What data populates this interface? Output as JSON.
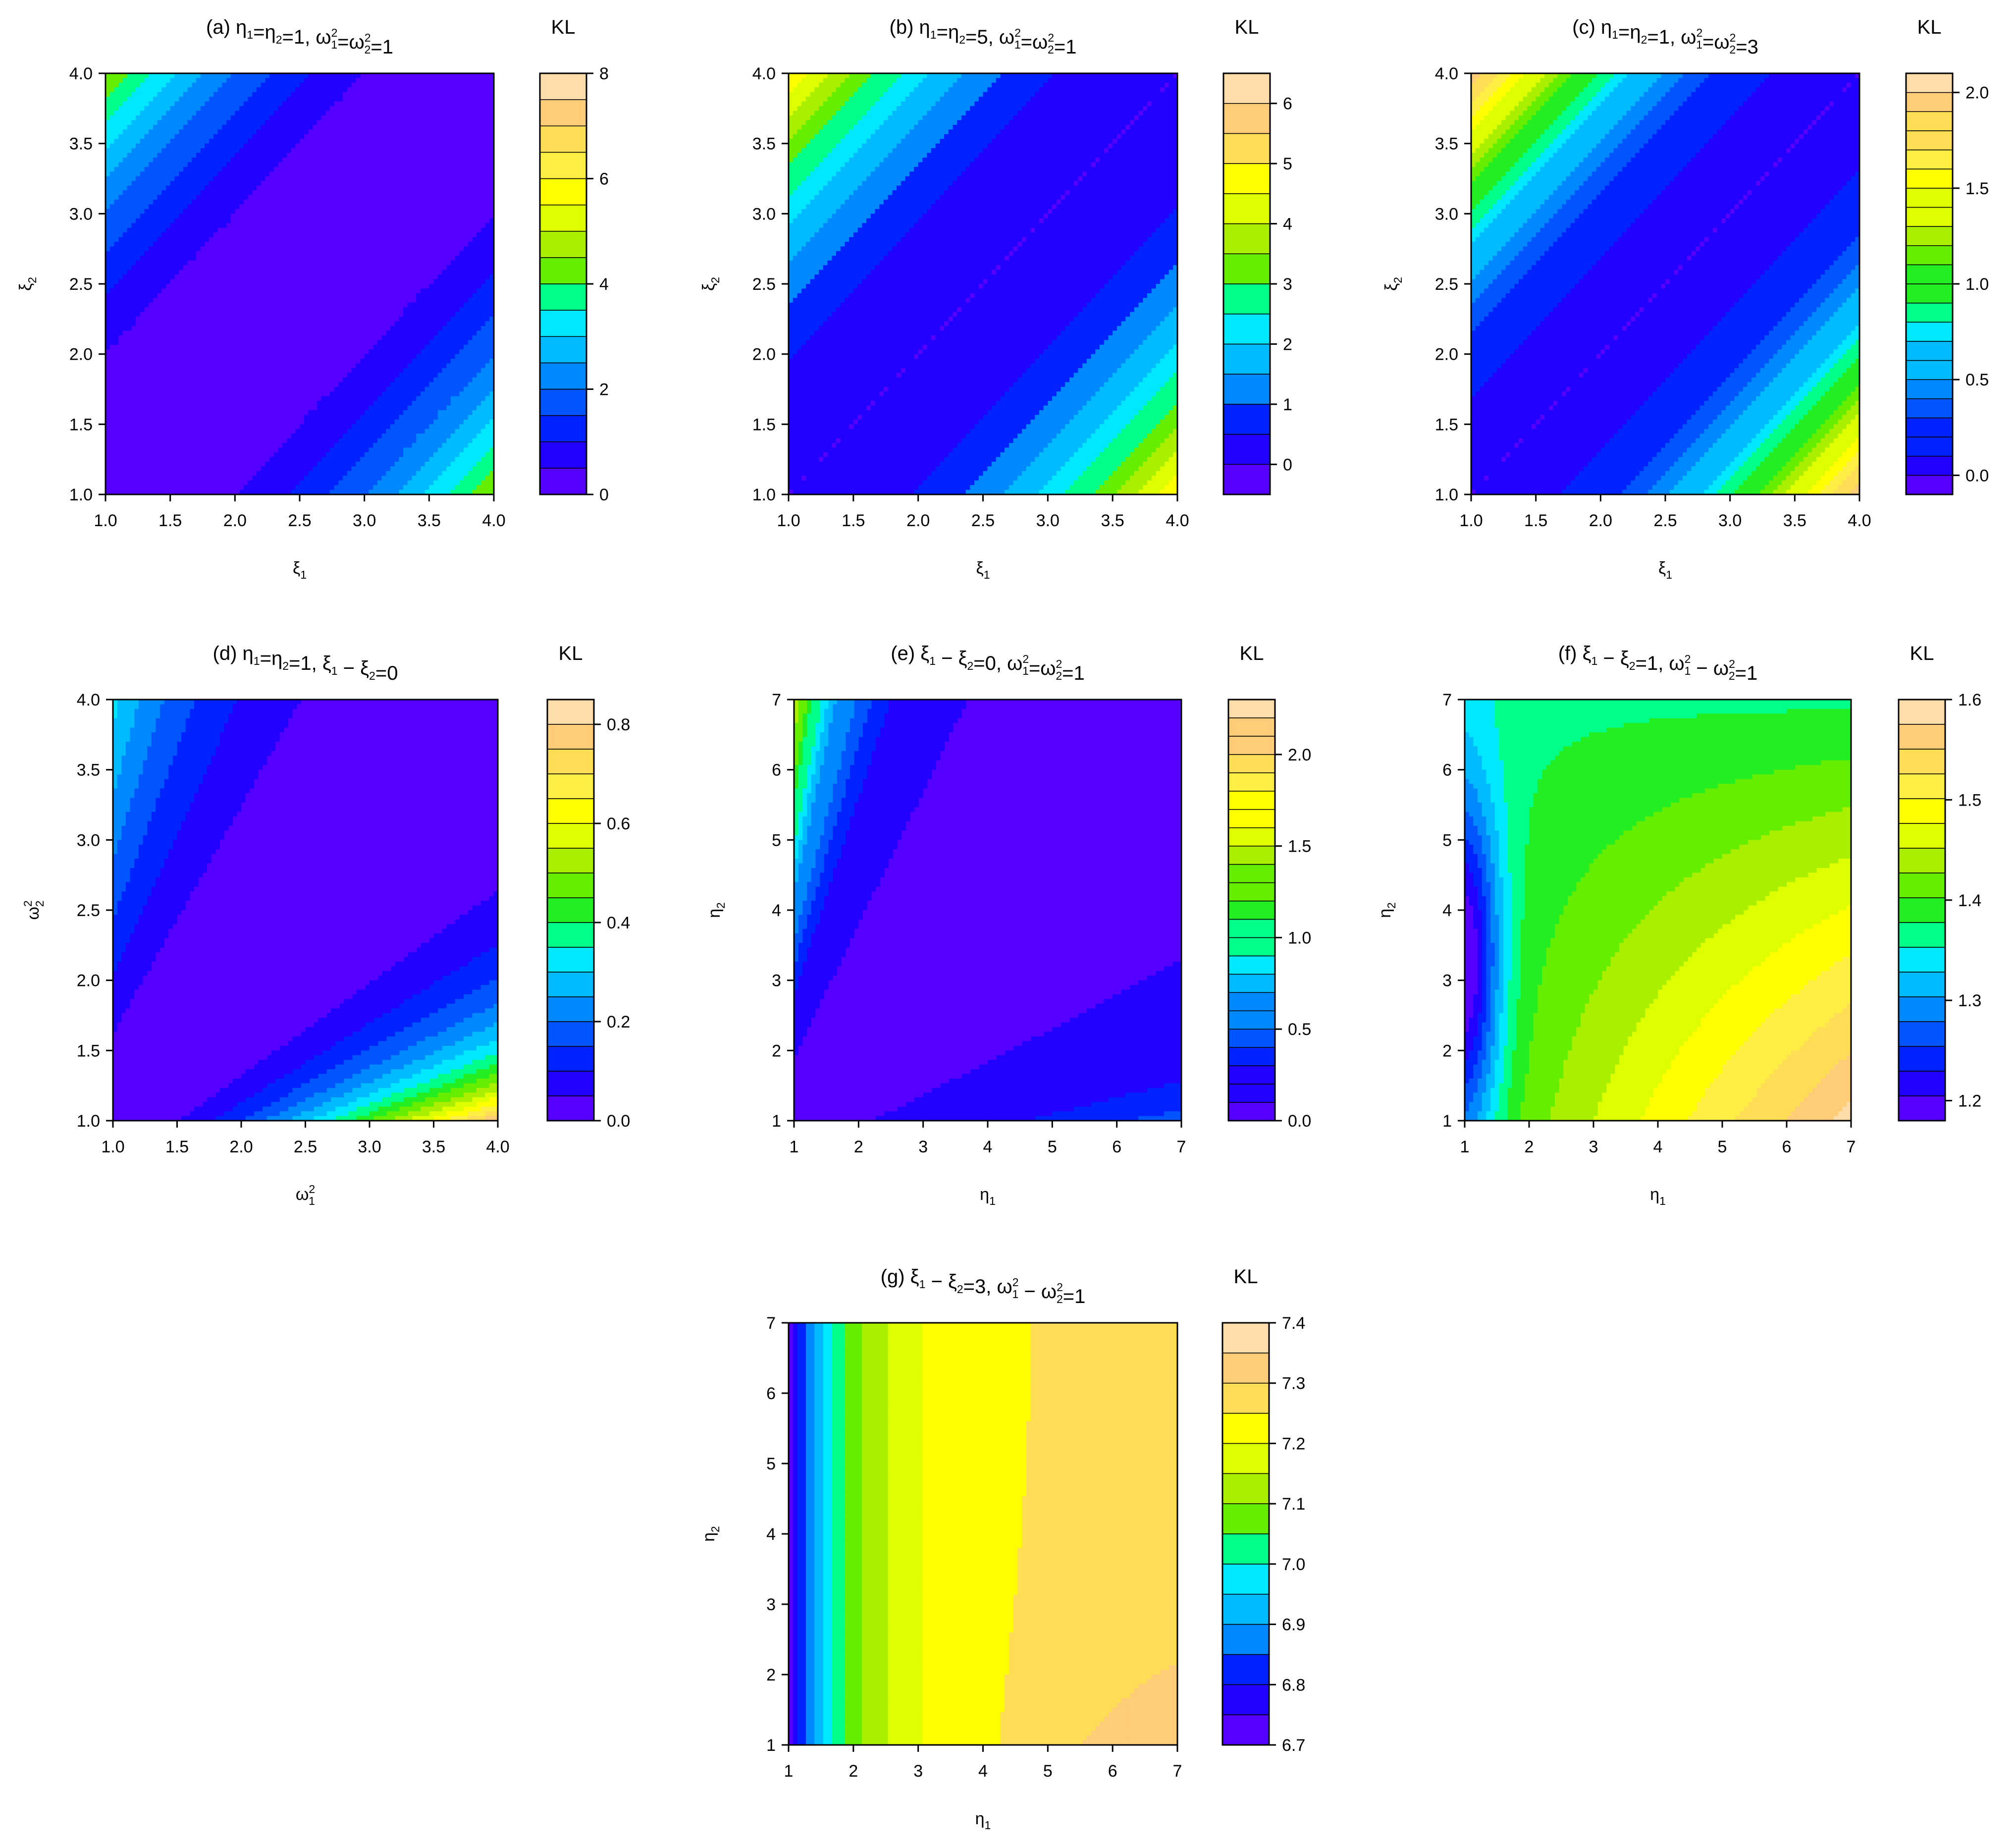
{
  "palette": [
    "#5500ff",
    "#2200ff",
    "#0022ff",
    "#0055ff",
    "#0088ff",
    "#00bbff",
    "#00e8ff",
    "#00ff88",
    "#22ee22",
    "#66ee00",
    "#aaee00",
    "#ddff00",
    "#ffff00",
    "#ffee44",
    "#ffdd55",
    "#ffcc77",
    "#ffddaa"
  ],
  "chart_data": [
    {
      "id": "a",
      "type": "heatmap",
      "title": {
        "label": "(a)",
        "parts": [
          [
            "η",
            "1",
            ""
          ],
          [
            "=η",
            "2",
            ""
          ],
          [
            "=1, ω",
            "1",
            "2"
          ],
          [
            "=ω",
            "2",
            "2"
          ],
          [
            "=1",
            "",
            ""
          ]
        ]
      },
      "legend_title": "KL",
      "xlabel": {
        "sym": "ξ",
        "sub": "1",
        "sup": ""
      },
      "ylabel": {
        "sym": "ξ",
        "sub": "2",
        "sup": ""
      },
      "xlim": [
        1,
        4
      ],
      "ylim": [
        1,
        4
      ],
      "xticks": [
        "1.0",
        "1.5",
        "2.0",
        "2.5",
        "3.0",
        "3.5",
        "4.0"
      ],
      "yticks": [
        "1.0",
        "1.5",
        "2.0",
        "2.5",
        "3.0",
        "3.5",
        "4.0"
      ],
      "levels": [
        0,
        0.5,
        1,
        1.5,
        2,
        2.5,
        3,
        3.5,
        4,
        4.5,
        5,
        5.5,
        6,
        6.5,
        7,
        7.5,
        8
      ],
      "colorbar_ticks": [
        "0",
        "2",
        "4",
        "6",
        "8"
      ],
      "function": "diagonal-quadratic",
      "grid_values_approx": "KL ≈ 0.5·(ξ1−ξ2)², 0 on the diagonal, ≈ 4.5 at corners (1,4) and (4,1)"
    },
    {
      "id": "b",
      "type": "heatmap",
      "title": {
        "label": "(b)",
        "parts": [
          [
            "η",
            "1",
            ""
          ],
          [
            "=η",
            "2",
            ""
          ],
          [
            "=5, ω",
            "1",
            "2"
          ],
          [
            "=ω",
            "2",
            "2"
          ],
          [
            "=1",
            "",
            ""
          ]
        ]
      },
      "legend_title": "KL",
      "xlabel": {
        "sym": "ξ",
        "sub": "1",
        "sup": ""
      },
      "ylabel": {
        "sym": "ξ",
        "sub": "2",
        "sup": ""
      },
      "xlim": [
        1,
        4
      ],
      "ylim": [
        1,
        4
      ],
      "xticks": [
        "1.0",
        "1.5",
        "2.0",
        "2.5",
        "3.0",
        "3.5",
        "4.0"
      ],
      "yticks": [
        "1.0",
        "1.5",
        "2.0",
        "2.5",
        "3.0",
        "3.5",
        "4.0"
      ],
      "levels": [
        -0.5,
        0,
        0.5,
        1,
        1.5,
        2,
        2.5,
        3,
        3.5,
        4,
        4.5,
        5,
        5.5,
        6,
        6.5
      ],
      "colorbar_ticks": [
        "0",
        "1",
        "2",
        "3",
        "4",
        "5",
        "6"
      ],
      "function": "diagonal-quadratic",
      "grid_values_approx": "KL ≈ 0.55·(ξ1−ξ2)², minimum near the diagonal, ≈ 5 at corner (4,1)"
    },
    {
      "id": "c",
      "type": "heatmap",
      "title": {
        "label": "(c)",
        "parts": [
          [
            "η",
            "1",
            ""
          ],
          [
            "=η",
            "2",
            ""
          ],
          [
            "=1, ω",
            "1",
            "2"
          ],
          [
            "=ω",
            "2",
            "2"
          ],
          [
            "=3",
            "",
            ""
          ]
        ]
      },
      "legend_title": "KL",
      "xlabel": {
        "sym": "ξ",
        "sub": "1",
        "sup": ""
      },
      "ylabel": {
        "sym": "ξ",
        "sub": "2",
        "sup": ""
      },
      "xlim": [
        1,
        4
      ],
      "ylim": [
        1,
        4
      ],
      "xticks": [
        "1.0",
        "1.5",
        "2.0",
        "2.5",
        "3.0",
        "3.5",
        "4.0"
      ],
      "yticks": [
        "1.0",
        "1.5",
        "2.0",
        "2.5",
        "3.0",
        "3.5",
        "4.0"
      ],
      "levels": [
        -0.1,
        -0.0,
        0.1,
        0.2,
        0.3,
        0.4,
        0.5,
        0.6,
        0.7,
        0.8,
        0.9,
        1.0,
        1.1,
        1.2,
        1.3,
        1.4,
        1.5,
        1.6,
        1.7,
        1.8,
        1.9,
        2.0,
        2.1
      ],
      "colorbar_ticks": [
        "0.0",
        "0.5",
        "1.0",
        "1.5",
        "2.0"
      ],
      "function": "diagonal-quadratic",
      "grid_values_approx": "KL ≈ 0.222·(ξ1−ξ2)², 0 on the diagonal, ≈ 2.0 at corners"
    },
    {
      "id": "d",
      "type": "heatmap",
      "title": {
        "label": "(d)",
        "parts": [
          [
            "η",
            "1",
            ""
          ],
          [
            "=η",
            "2",
            ""
          ],
          [
            "=1, ξ",
            "1",
            ""
          ],
          [
            " − ξ",
            "2",
            ""
          ],
          [
            "=0",
            "",
            ""
          ]
        ]
      },
      "legend_title": "KL",
      "xlabel": {
        "sym": "ω",
        "sub": "1",
        "sup": "2"
      },
      "ylabel": {
        "sym": "ω",
        "sub": "2",
        "sup": "2"
      },
      "xlim": [
        1,
        4
      ],
      "ylim": [
        1,
        4
      ],
      "xticks": [
        "1.0",
        "1.5",
        "2.0",
        "2.5",
        "3.0",
        "3.5",
        "4.0"
      ],
      "yticks": [
        "1.0",
        "1.5",
        "2.0",
        "2.5",
        "3.0",
        "3.5",
        "4.0"
      ],
      "levels": [
        0.0,
        0.05,
        0.1,
        0.15,
        0.2,
        0.25,
        0.3,
        0.35,
        0.4,
        0.45,
        0.5,
        0.55,
        0.6,
        0.65,
        0.7,
        0.75,
        0.8,
        0.85
      ],
      "colorbar_ticks": [
        "0.0",
        "0.2",
        "0.4",
        "0.6",
        "0.8"
      ],
      "function": "variance-ratio",
      "grid_values_approx": "KL ≈ 0.5·(r − 1 − ln r), r = ω1²/ω2²; ≈ 0.81 at (4,1), ≈ 0.32 at (1,4)"
    },
    {
      "id": "e",
      "type": "heatmap",
      "title": {
        "label": "(e)",
        "parts": [
          [
            "ξ",
            "1",
            ""
          ],
          [
            " − ξ",
            "2",
            ""
          ],
          [
            "=0, ω",
            "1",
            "2"
          ],
          [
            "=ω",
            "2",
            "2"
          ],
          [
            "=1",
            "",
            ""
          ]
        ]
      },
      "legend_title": "KL",
      "xlabel": {
        "sym": "η",
        "sub": "1",
        "sup": ""
      },
      "ylabel": {
        "sym": "η",
        "sub": "2",
        "sup": ""
      },
      "xlim": [
        1,
        7
      ],
      "ylim": [
        1,
        7
      ],
      "xticks": [
        "1",
        "2",
        "3",
        "4",
        "5",
        "6",
        "7"
      ],
      "yticks": [
        "1",
        "2",
        "3",
        "4",
        "5",
        "6",
        "7"
      ],
      "levels": [
        0.0,
        0.1,
        0.2,
        0.3,
        0.4,
        0.5,
        0.6,
        0.7,
        0.8,
        0.9,
        1.0,
        1.1,
        1.2,
        1.3,
        1.4,
        1.5,
        1.6,
        1.7,
        1.8,
        1.9,
        2.0,
        2.1,
        2.2,
        2.3
      ],
      "colorbar_ticks": [
        "0.0",
        "0.5",
        "1.0",
        "1.5",
        "2.0"
      ],
      "function": "eta-ratio",
      "grid_values_approx": "KL small over most of the grid; ≈ 2.2 at (1,7), rising near η1 = 1 for large η2"
    },
    {
      "id": "f",
      "type": "heatmap",
      "title": {
        "label": "(f)",
        "parts": [
          [
            "ξ",
            "1",
            ""
          ],
          [
            " − ξ",
            "2",
            ""
          ],
          [
            "=1, ω",
            "1",
            "2"
          ],
          [
            " − ω",
            "2",
            "2"
          ],
          [
            "=1",
            "",
            ""
          ]
        ]
      },
      "legend_title": "KL",
      "xlabel": {
        "sym": "η",
        "sub": "1",
        "sup": ""
      },
      "ylabel": {
        "sym": "η",
        "sub": "2",
        "sup": ""
      },
      "xlim": [
        1,
        7
      ],
      "ylim": [
        1,
        7
      ],
      "xticks": [
        "1",
        "2",
        "3",
        "4",
        "5",
        "6",
        "7"
      ],
      "yticks": [
        "1",
        "2",
        "3",
        "4",
        "5",
        "6",
        "7"
      ],
      "levels": [
        1.18,
        1.2,
        1.225,
        1.25,
        1.275,
        1.3,
        1.325,
        1.35,
        1.375,
        1.4,
        1.425,
        1.45,
        1.475,
        1.5,
        1.525,
        1.55,
        1.575,
        1.6
      ],
      "colorbar_ticks": [
        "1.2",
        "1.3",
        "1.4",
        "1.5",
        "1.6"
      ],
      "function": "shifted-mean",
      "grid_values_approx": "KL ≈ 1.2 at (1,3); ≈ 1.59 at (7,1); ≈ 1.36 at (1,7); ≈ 1.39 at (7,7)"
    },
    {
      "id": "g",
      "type": "heatmap",
      "title": {
        "label": "(g)",
        "parts": [
          [
            "ξ",
            "1",
            ""
          ],
          [
            " − ξ",
            "2",
            ""
          ],
          [
            "=3, ω",
            "1",
            "2"
          ],
          [
            " − ω",
            "2",
            "2"
          ],
          [
            "=1",
            "",
            ""
          ]
        ]
      },
      "legend_title": "KL",
      "xlabel": {
        "sym": "η",
        "sub": "1",
        "sup": ""
      },
      "ylabel": {
        "sym": "η",
        "sub": "2",
        "sup": ""
      },
      "xlim": [
        1,
        7
      ],
      "ylim": [
        1,
        7
      ],
      "xticks": [
        "1",
        "2",
        "3",
        "4",
        "5",
        "6",
        "7"
      ],
      "yticks": [
        "1",
        "2",
        "3",
        "4",
        "5",
        "6",
        "7"
      ],
      "levels": [
        6.7,
        6.75,
        6.8,
        6.85,
        6.9,
        6.95,
        7.0,
        7.05,
        7.1,
        7.15,
        7.2,
        7.25,
        7.3,
        7.35,
        7.4
      ],
      "colorbar_ticks": [
        "6.7",
        "6.8",
        "6.9",
        "7.0",
        "7.1",
        "7.2",
        "7.3",
        "7.4"
      ],
      "function": "shifted-mean-large",
      "grid_values_approx": "KL ≈ 6.72 at η1 = 1; ≈ 7.25 at η1 ≥ 4; ≈ 7.35 at (7,1)"
    }
  ]
}
